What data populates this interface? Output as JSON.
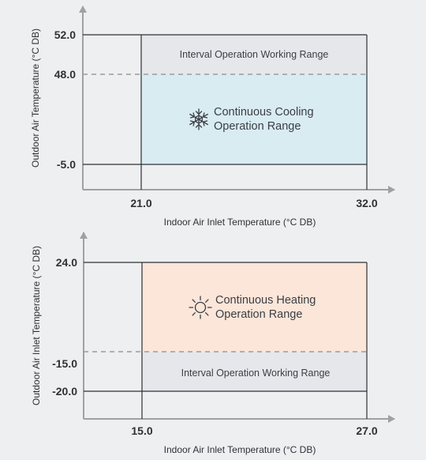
{
  "cooling": {
    "y_axis_title": "Outdoor Air Temperature (°C DB)",
    "x_axis_title": "Indoor Air Inlet Temperature (°C DB)",
    "y_ticks": [
      "52.0",
      "48.0",
      "-5.0"
    ],
    "x_ticks": [
      "21.0",
      "32.0"
    ],
    "interval_label": "Interval Operation Working Range",
    "continuous_label_line1": "Continuous Cooling",
    "continuous_label_line2": "Operation Range",
    "icon": "snowflake-icon",
    "continuous_color": "#d8ecf2"
  },
  "heating": {
    "y_axis_title": "Outdoor Air Inlet Temperature (°C DB)",
    "x_axis_title": "Indoor Air Inlet Temperature (°C DB)",
    "y_ticks": [
      "24.0",
      "-15.0",
      "-20.0"
    ],
    "x_ticks": [
      "15.0",
      "27.0"
    ],
    "interval_label": "Interval Operation Working Range",
    "continuous_label_line1": "Continuous Heating",
    "continuous_label_line2": "Operation Range",
    "icon": "sun-icon",
    "continuous_color": "#fbe6d9"
  },
  "colors": {
    "background": "#eeeff1",
    "interval_region": "#e6e7eb",
    "axis": "#9fa1a6",
    "box_line": "#2f3136",
    "dashed_line": "#9a9ca1"
  }
}
